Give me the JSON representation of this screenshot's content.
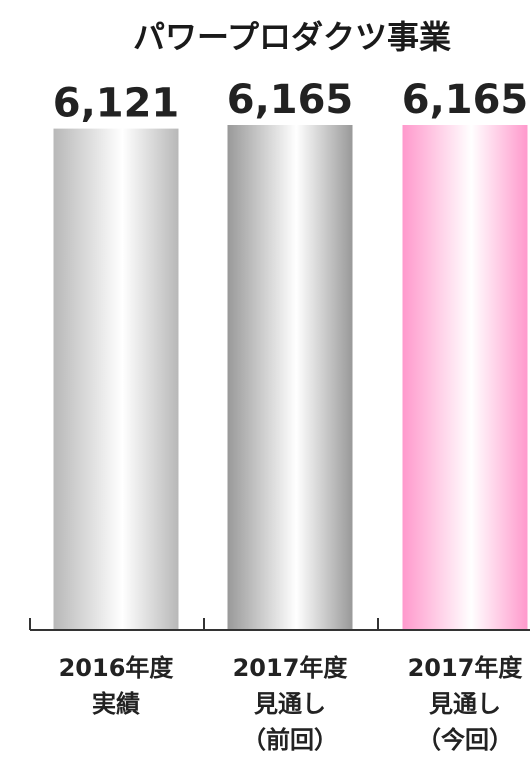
{
  "chart_data": {
    "type": "bar",
    "title": "パワープロダクツ事業",
    "categories": [
      [
        "2016年度",
        "実績"
      ],
      [
        "2017年度",
        "見通し",
        "（前回）"
      ],
      [
        "2017年度",
        "見通し",
        "（今回）"
      ]
    ],
    "values": [
      6121,
      6165,
      6165
    ],
    "value_labels": [
      "6,121",
      "6,165",
      "6,165"
    ],
    "xlabel": "",
    "ylabel": "",
    "grid": false,
    "bar_styles": [
      {
        "edge": "#b8b8b8",
        "center": "#ffffff"
      },
      {
        "edge": "#999999",
        "center": "#ffffff"
      },
      {
        "edge": "#ff99cc",
        "center": "#ffffff"
      }
    ],
    "axis_color": "#333333"
  }
}
